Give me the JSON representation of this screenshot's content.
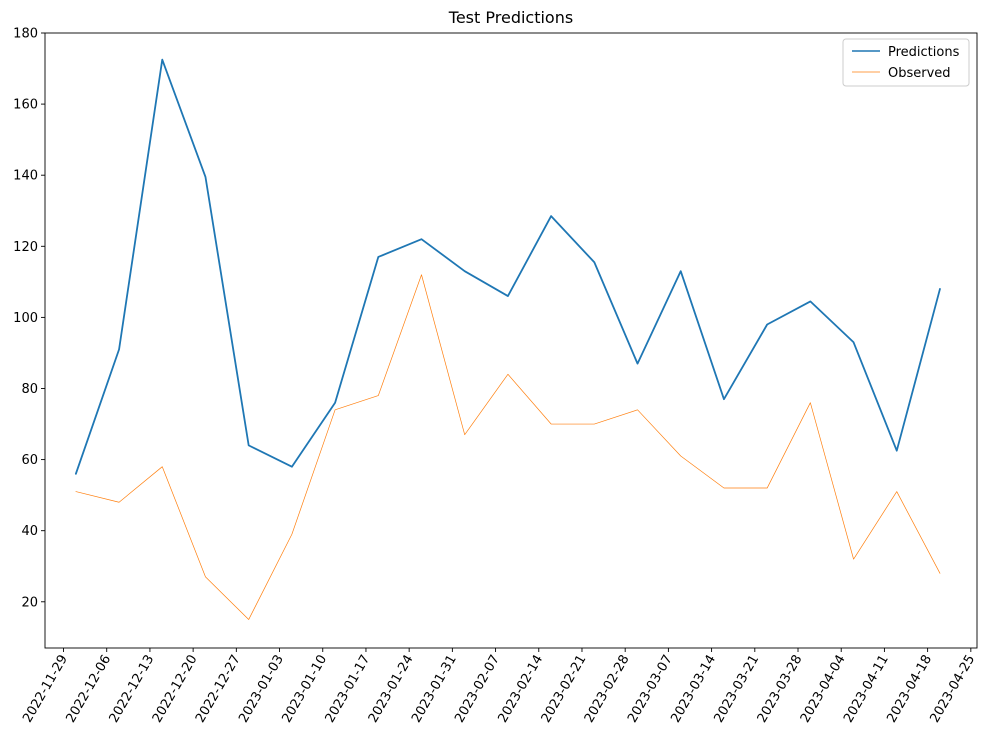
{
  "chart_data": {
    "type": "line",
    "title": "Test Predictions",
    "xlabel": "",
    "ylabel": "",
    "x_ticks": [
      "2022-11-29",
      "2022-12-06",
      "2022-12-13",
      "2022-12-20",
      "2022-12-27",
      "2023-01-03",
      "2023-01-10",
      "2023-01-17",
      "2023-01-24",
      "2023-01-31",
      "2023-02-07",
      "2023-02-14",
      "2023-02-21",
      "2023-02-28",
      "2023-03-07",
      "2023-03-14",
      "2023-03-21",
      "2023-03-28",
      "2023-04-04",
      "2023-04-11",
      "2023-04-18",
      "2023-04-25"
    ],
    "y_ticks": [
      20,
      40,
      60,
      80,
      100,
      120,
      140,
      160,
      180
    ],
    "xlim": [
      "2022-11-26",
      "2023-04-26"
    ],
    "ylim": [
      7,
      180
    ],
    "x": [
      "2022-12-01",
      "2022-12-08",
      "2022-12-15",
      "2022-12-22",
      "2022-12-29",
      "2023-01-05",
      "2023-01-12",
      "2023-01-19",
      "2023-01-26",
      "2023-02-02",
      "2023-02-09",
      "2023-02-16",
      "2023-02-23",
      "2023-03-02",
      "2023-03-09",
      "2023-03-16",
      "2023-03-23",
      "2023-03-30",
      "2023-04-06",
      "2023-04-13",
      "2023-04-20"
    ],
    "series": [
      {
        "name": "Predictions",
        "color": "#1f77b4",
        "values": [
          56,
          91,
          172.5,
          139.5,
          64,
          58,
          76,
          117,
          122,
          113,
          106,
          128.5,
          115.5,
          87,
          113,
          77,
          98,
          104.5,
          93,
          62.5,
          108
        ]
      },
      {
        "name": "Observed",
        "color": "#ff7f0e",
        "values": [
          51,
          48,
          58,
          27,
          15,
          39,
          74,
          78,
          112,
          67,
          84,
          70,
          70,
          74,
          61,
          52,
          52,
          76,
          32,
          51,
          28
        ]
      }
    ],
    "grid": false,
    "legend": "top-right"
  }
}
